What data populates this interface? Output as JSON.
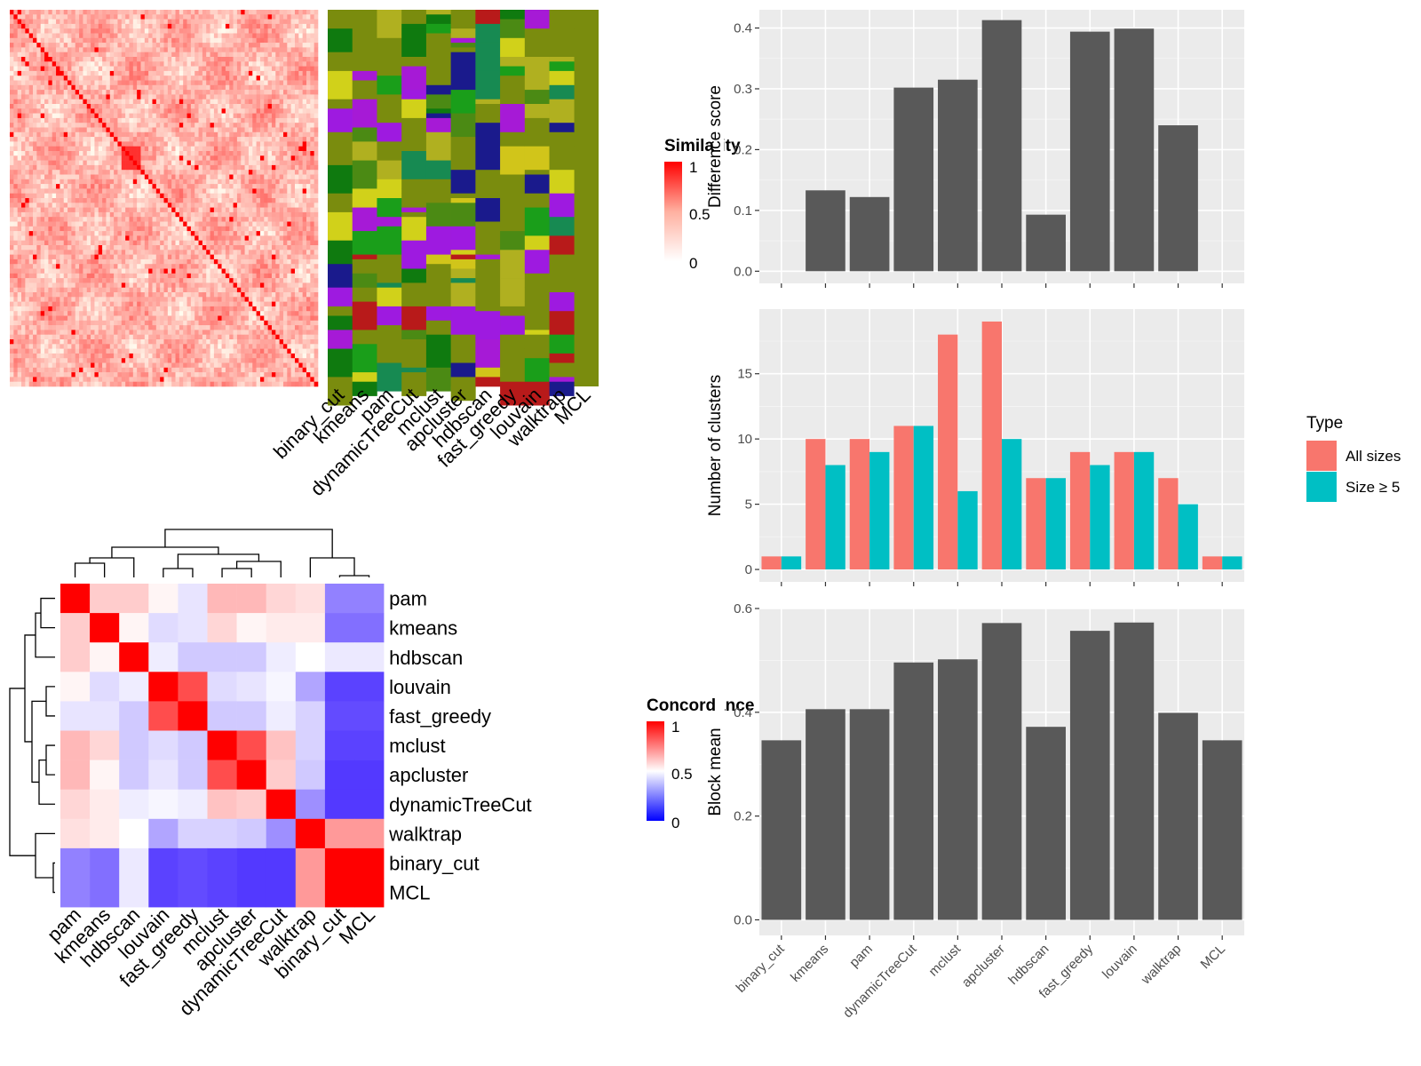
{
  "colors": {
    "bar": "#595959",
    "panel_bg": "#EBEBEB",
    "grid": "#FFFFFF",
    "all_sizes": "#F8766D",
    "size_ge5": "#00BFC4",
    "sim_high": "#FF0000",
    "sim_low": "#FFFFFF",
    "conc_low": "#0000FF",
    "conc_mid": "#FFFFFF",
    "conc_high": "#FF0000"
  },
  "top_heatmap": {
    "legend_title": "Similarity",
    "legend_ticks": [
      "1",
      "0.5",
      "0"
    ],
    "column_labels": [
      "binary_cut",
      "kmeans",
      "pam",
      "dynamicTreeCut",
      "mclust",
      "apcluster",
      "hdbscan",
      "fast_greedy",
      "louvain",
      "walktrap",
      "MCL"
    ],
    "cluster_palette": [
      "#7A8C0E",
      "#A61AD6",
      "#D1C51A",
      "#1A9E1A",
      "#1A1A8C",
      "#B81A1A",
      "#178A52",
      "#D1D11A",
      "#0F7A0F",
      "#4B8A14",
      "#9E1AE0",
      "#B0B020"
    ]
  },
  "concordance": {
    "legend_title": "Concordance",
    "legend_ticks": [
      "1",
      "0.5",
      "0"
    ],
    "labels": [
      "pam",
      "kmeans",
      "hdbscan",
      "louvain",
      "fast_greedy",
      "mclust",
      "apcluster",
      "dynamicTreeCut",
      "walktrap",
      "binary_cut",
      "MCL"
    ],
    "matrix": [
      [
        1.0,
        0.6,
        0.6,
        0.52,
        0.44,
        0.64,
        0.64,
        0.58,
        0.56,
        0.22,
        0.22
      ],
      [
        0.6,
        1.0,
        0.52,
        0.42,
        0.44,
        0.58,
        0.52,
        0.54,
        0.54,
        0.18,
        0.18
      ],
      [
        0.6,
        0.52,
        1.0,
        0.46,
        0.38,
        0.38,
        0.38,
        0.46,
        0.5,
        0.45,
        0.45
      ],
      [
        0.52,
        0.42,
        0.46,
        1.0,
        0.85,
        0.42,
        0.44,
        0.48,
        0.3,
        0.08,
        0.08
      ],
      [
        0.44,
        0.44,
        0.38,
        0.85,
        1.0,
        0.38,
        0.38,
        0.46,
        0.4,
        0.1,
        0.1
      ],
      [
        0.64,
        0.58,
        0.38,
        0.42,
        0.38,
        1.0,
        0.85,
        0.62,
        0.4,
        0.08,
        0.08
      ],
      [
        0.64,
        0.52,
        0.38,
        0.44,
        0.38,
        0.85,
        1.0,
        0.6,
        0.38,
        0.06,
        0.06
      ],
      [
        0.58,
        0.54,
        0.46,
        0.48,
        0.46,
        0.62,
        0.6,
        1.0,
        0.25,
        0.06,
        0.06
      ],
      [
        0.56,
        0.54,
        0.5,
        0.3,
        0.4,
        0.4,
        0.38,
        0.25,
        1.0,
        0.7,
        0.7
      ],
      [
        0.22,
        0.18,
        0.45,
        0.08,
        0.1,
        0.08,
        0.06,
        0.06,
        0.7,
        1.0,
        1.0
      ],
      [
        0.22,
        0.18,
        0.45,
        0.08,
        0.1,
        0.08,
        0.06,
        0.06,
        0.7,
        1.0,
        1.0
      ]
    ]
  },
  "chart_data": [
    {
      "type": "bar",
      "categories": [
        "binary_cut",
        "kmeans",
        "pam",
        "dynamicTreeCut",
        "mclust",
        "apcluster",
        "hdbscan",
        "fast_greedy",
        "louvain",
        "walktrap",
        "MCL"
      ],
      "values": [
        0,
        0.133,
        0.122,
        0.302,
        0.315,
        0.413,
        0.093,
        0.394,
        0.399,
        0.24,
        0
      ],
      "ylabel": "Difference score",
      "ylim": [
        -0.02,
        0.43
      ],
      "yticks": [
        "0.0",
        "0.1",
        "0.2",
        "0.3",
        "0.4"
      ],
      "grid": true
    },
    {
      "type": "bar",
      "categories": [
        "binary_cut",
        "kmeans",
        "pam",
        "dynamicTreeCut",
        "mclust",
        "apcluster",
        "hdbscan",
        "fast_greedy",
        "louvain",
        "walktrap",
        "MCL"
      ],
      "series": [
        {
          "name": "All sizes",
          "values": [
            1,
            10,
            10,
            11,
            18,
            19,
            7,
            9,
            9,
            7,
            1
          ]
        },
        {
          "name": "Size ≥ 5",
          "values": [
            1,
            8,
            9,
            11,
            6,
            10,
            7,
            8,
            9,
            5,
            1
          ]
        }
      ],
      "ylabel": "Number of clusters",
      "legend_title": "Type",
      "ylim": [
        -0.95,
        19.95
      ],
      "yticks": [
        "0",
        "5",
        "10",
        "15"
      ],
      "grid": true,
      "legend_position": "right"
    },
    {
      "type": "bar",
      "categories": [
        "binary_cut",
        "kmeans",
        "pam",
        "dynamicTreeCut",
        "mclust",
        "apcluster",
        "hdbscan",
        "fast_greedy",
        "louvain",
        "walktrap",
        "MCL"
      ],
      "values": [
        0.346,
        0.406,
        0.406,
        0.496,
        0.502,
        0.572,
        0.372,
        0.557,
        0.573,
        0.399,
        0.346
      ],
      "ylabel": "Block mean",
      "xlabels": [
        "binary_cut",
        "kmeans",
        "pam",
        "dynamicTreeCut",
        "mclust",
        "apcluster",
        "hdbscan",
        "fast_greedy",
        "louvain",
        "walktrap",
        "MCL"
      ],
      "ylim": [
        -0.03,
        0.6
      ],
      "yticks": [
        "0.0",
        "0.2",
        "0.4",
        "0.6"
      ],
      "grid": true
    }
  ]
}
